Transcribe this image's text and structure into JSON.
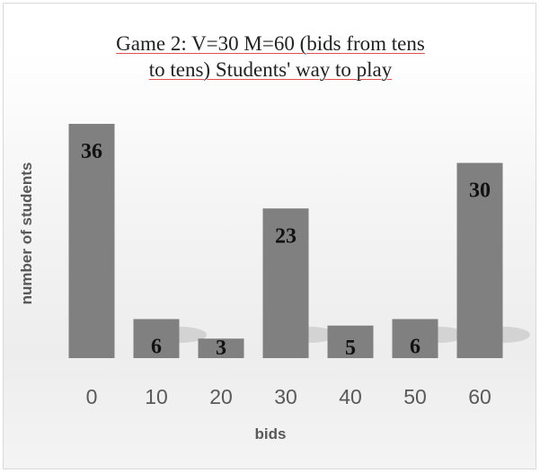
{
  "chart_data": {
    "type": "bar",
    "title_lines": [
      "Game 2: V=30 M=60 (bids from tens",
      "to tens)  Students' way to play"
    ],
    "xlabel": "bids",
    "ylabel": "number of students",
    "categories": [
      "0",
      "10",
      "20",
      "30",
      "40",
      "50",
      "60"
    ],
    "values": [
      36,
      6,
      3,
      23,
      5,
      6,
      30
    ],
    "data_labels": [
      "36",
      "6",
      "3",
      "23",
      "5",
      "6",
      "30"
    ],
    "ylim": [
      0,
      36
    ],
    "grid": false,
    "legend": "none",
    "bar_color": "#808080"
  }
}
